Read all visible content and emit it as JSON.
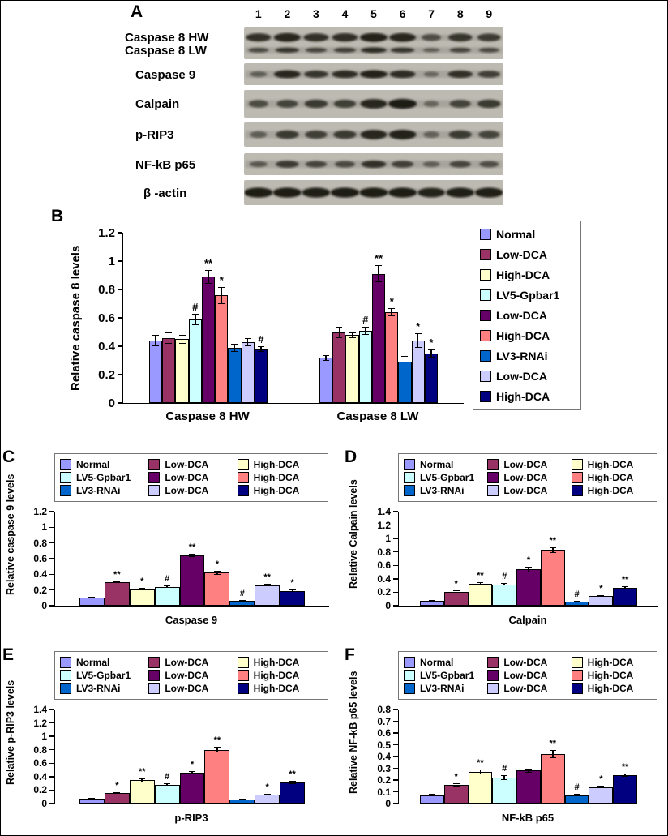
{
  "panels": {
    "A": {
      "label": "A",
      "lanes": [
        "1",
        "2",
        "3",
        "4",
        "5",
        "6",
        "7",
        "8",
        "9"
      ],
      "rows": [
        {
          "label": "Caspase 8 HW",
          "band_intensities": [
            0.75,
            0.85,
            0.75,
            0.78,
            0.9,
            0.85,
            0.45,
            0.7,
            0.65
          ]
        },
        {
          "label": "Caspase 8 LW",
          "band_intensities": [
            0.5,
            0.7,
            0.55,
            0.6,
            0.8,
            0.7,
            0.3,
            0.55,
            0.5
          ]
        },
        {
          "label": "Caspase 9",
          "band_intensities": [
            0.3,
            0.85,
            0.7,
            0.8,
            0.9,
            0.8,
            0.2,
            0.75,
            0.6
          ]
        },
        {
          "label": "Calpain",
          "band_intensities": [
            0.45,
            0.55,
            0.65,
            0.6,
            0.85,
            0.95,
            0.2,
            0.55,
            0.65
          ]
        },
        {
          "label": "p-RIP3",
          "band_intensities": [
            0.3,
            0.65,
            0.6,
            0.65,
            0.85,
            0.9,
            0.25,
            0.65,
            0.55
          ]
        },
        {
          "label": "NF-kB p65",
          "band_intensities": [
            0.35,
            0.65,
            0.55,
            0.5,
            0.75,
            0.6,
            0.3,
            0.55,
            0.45
          ]
        },
        {
          "label": "β -actin",
          "band_intensities": [
            0.95,
            0.95,
            0.92,
            0.95,
            0.95,
            0.95,
            0.88,
            0.92,
            0.92
          ]
        }
      ]
    },
    "B": {
      "label": "B"
    },
    "C": {
      "label": "C"
    },
    "D": {
      "label": "D"
    },
    "E": {
      "label": "E"
    },
    "F": {
      "label": "F"
    }
  },
  "chart_data": [
    {
      "panel": "B",
      "type": "bar",
      "ylabel": "Relative caspase 8 levels",
      "categories": [
        "Caspase 8 HW",
        "Caspase 8 LW"
      ],
      "ylim": [
        0,
        1.2
      ],
      "ytick_step": 0.2,
      "legend_position": "right",
      "grid": false,
      "series": [
        {
          "name": "Normal",
          "color": "#9999FF",
          "values": [
            0.44,
            0.32
          ],
          "errors": [
            0.04,
            0.02
          ],
          "annotations": [
            "",
            ""
          ]
        },
        {
          "name": "Low-DCA",
          "color": "#993366",
          "values": [
            0.46,
            0.5
          ],
          "errors": [
            0.04,
            0.04
          ],
          "annotations": [
            "",
            ""
          ]
        },
        {
          "name": "High-DCA",
          "color": "#FFFFCC",
          "values": [
            0.45,
            0.48
          ],
          "errors": [
            0.03,
            0.02
          ],
          "annotations": [
            "",
            ""
          ]
        },
        {
          "name": "LV5-Gpbar1",
          "color": "#CCFFFF",
          "values": [
            0.59,
            0.51
          ],
          "errors": [
            0.04,
            0.03
          ],
          "annotations": [
            "#",
            "#"
          ]
        },
        {
          "name": "Low-DCA",
          "color": "#660066",
          "values": [
            0.89,
            0.91
          ],
          "errors": [
            0.05,
            0.06
          ],
          "annotations": [
            "**",
            "**"
          ]
        },
        {
          "name": "High-DCA",
          "color": "#FF8080",
          "values": [
            0.76,
            0.64
          ],
          "errors": [
            0.06,
            0.03
          ],
          "annotations": [
            "*",
            "*"
          ]
        },
        {
          "name": "LV3-RNAi",
          "color": "#0066CC",
          "values": [
            0.39,
            0.29
          ],
          "errors": [
            0.03,
            0.04
          ],
          "annotations": [
            "",
            ""
          ]
        },
        {
          "name": "Low-DCA",
          "color": "#CCCCFF",
          "values": [
            0.43,
            0.44
          ],
          "errors": [
            0.03,
            0.05
          ],
          "annotations": [
            "",
            "*"
          ]
        },
        {
          "name": "High-DCA",
          "color": "#000080",
          "values": [
            0.38,
            0.35
          ],
          "errors": [
            0.02,
            0.03
          ],
          "annotations": [
            "#",
            "*"
          ]
        }
      ]
    },
    {
      "panel": "C",
      "type": "bar",
      "ylabel": "Relative caspase 9 levels",
      "categories": [
        "Caspase 9"
      ],
      "ylim": [
        0,
        1.2
      ],
      "ytick_step": 0.2,
      "legend_position": "top",
      "grid": false,
      "series": [
        {
          "name": "Normal",
          "color": "#9999FF",
          "values": [
            0.1
          ],
          "errors": [
            0.01
          ],
          "annotations": [
            ""
          ]
        },
        {
          "name": "Low-DCA",
          "color": "#993366",
          "values": [
            0.3
          ],
          "errors": [
            0.015
          ],
          "annotations": [
            "**"
          ]
        },
        {
          "name": "High-DCA",
          "color": "#FFFFCC",
          "values": [
            0.21
          ],
          "errors": [
            0.015
          ],
          "annotations": [
            "*"
          ]
        },
        {
          "name": "LV5-Gpbar1",
          "color": "#CCFFFF",
          "values": [
            0.24
          ],
          "errors": [
            0.015
          ],
          "annotations": [
            "#"
          ]
        },
        {
          "name": "Low-DCA",
          "color": "#660066",
          "values": [
            0.64
          ],
          "errors": [
            0.02
          ],
          "annotations": [
            "**"
          ]
        },
        {
          "name": "High-DCA",
          "color": "#FF8080",
          "values": [
            0.42
          ],
          "errors": [
            0.025
          ],
          "annotations": [
            "*"
          ]
        },
        {
          "name": "LV3-RNAi",
          "color": "#0066CC",
          "values": [
            0.06
          ],
          "errors": [
            0.008
          ],
          "annotations": [
            "#"
          ]
        },
        {
          "name": "Low-DCA",
          "color": "#CCCCFF",
          "values": [
            0.26
          ],
          "errors": [
            0.015
          ],
          "annotations": [
            "**"
          ]
        },
        {
          "name": "High-DCA",
          "color": "#000080",
          "values": [
            0.19
          ],
          "errors": [
            0.012
          ],
          "annotations": [
            "*"
          ]
        }
      ]
    },
    {
      "panel": "D",
      "type": "bar",
      "ylabel": "Relative Calpain levels",
      "categories": [
        "Calpain"
      ],
      "ylim": [
        0,
        1.4
      ],
      "ytick_step": 0.2,
      "legend_position": "top",
      "grid": false,
      "series": [
        {
          "name": "Normal",
          "color": "#9999FF",
          "values": [
            0.07
          ],
          "errors": [
            0.01
          ],
          "annotations": [
            ""
          ]
        },
        {
          "name": "Low-DCA",
          "color": "#993366",
          "values": [
            0.21
          ],
          "errors": [
            0.02
          ],
          "annotations": [
            "*"
          ]
        },
        {
          "name": "High-DCA",
          "color": "#FFFFCC",
          "values": [
            0.33
          ],
          "errors": [
            0.02
          ],
          "annotations": [
            "**"
          ]
        },
        {
          "name": "LV5-Gpbar1",
          "color": "#CCFFFF",
          "values": [
            0.32
          ],
          "errors": [
            0.02
          ],
          "annotations": [
            "#"
          ]
        },
        {
          "name": "Low-DCA",
          "color": "#660066",
          "values": [
            0.54
          ],
          "errors": [
            0.04
          ],
          "annotations": [
            "*"
          ]
        },
        {
          "name": "High-DCA",
          "color": "#FF8080",
          "values": [
            0.83
          ],
          "errors": [
            0.04
          ],
          "annotations": [
            "**"
          ]
        },
        {
          "name": "LV3-RNAi",
          "color": "#0066CC",
          "values": [
            0.06
          ],
          "errors": [
            0.008
          ],
          "annotations": [
            "#"
          ]
        },
        {
          "name": "Low-DCA",
          "color": "#CCCCFF",
          "values": [
            0.14
          ],
          "errors": [
            0.012
          ],
          "annotations": [
            "*"
          ]
        },
        {
          "name": "High-DCA",
          "color": "#000080",
          "values": [
            0.27
          ],
          "errors": [
            0.015
          ],
          "annotations": [
            "**"
          ]
        }
      ]
    },
    {
      "panel": "E",
      "type": "bar",
      "ylabel": "Relative p-RIP3 levels",
      "categories": [
        "p-RIP3"
      ],
      "ylim": [
        0,
        1.4
      ],
      "ytick_step": 0.2,
      "legend_position": "top",
      "grid": false,
      "series": [
        {
          "name": "Normal",
          "color": "#9999FF",
          "values": [
            0.07
          ],
          "errors": [
            0.01
          ],
          "annotations": [
            ""
          ]
        },
        {
          "name": "Low-DCA",
          "color": "#993366",
          "values": [
            0.16
          ],
          "errors": [
            0.015
          ],
          "annotations": [
            "*"
          ]
        },
        {
          "name": "High-DCA",
          "color": "#FFFFCC",
          "values": [
            0.35
          ],
          "errors": [
            0.03
          ],
          "annotations": [
            "**"
          ]
        },
        {
          "name": "LV5-Gpbar1",
          "color": "#CCFFFF",
          "values": [
            0.28
          ],
          "errors": [
            0.02
          ],
          "annotations": [
            "#"
          ]
        },
        {
          "name": "Low-DCA",
          "color": "#660066",
          "values": [
            0.46
          ],
          "errors": [
            0.025
          ],
          "annotations": [
            "*"
          ]
        },
        {
          "name": "High-DCA",
          "color": "#FF8080",
          "values": [
            0.8
          ],
          "errors": [
            0.04
          ],
          "annotations": [
            "**"
          ]
        },
        {
          "name": "LV3-RNAi",
          "color": "#0066CC",
          "values": [
            0.06
          ],
          "errors": [
            0.008
          ],
          "annotations": [
            ""
          ]
        },
        {
          "name": "Low-DCA",
          "color": "#CCCCFF",
          "values": [
            0.13
          ],
          "errors": [
            0.012
          ],
          "annotations": [
            "*"
          ]
        },
        {
          "name": "High-DCA",
          "color": "#000080",
          "values": [
            0.31
          ],
          "errors": [
            0.025
          ],
          "annotations": [
            "**"
          ]
        }
      ]
    },
    {
      "panel": "F",
      "type": "bar",
      "ylabel": "Relative NF-kB p65 levels",
      "categories": [
        "NF-kB p65"
      ],
      "ylim": [
        0,
        0.8
      ],
      "ytick_step": 0.1,
      "legend_position": "top",
      "grid": false,
      "series": [
        {
          "name": "Normal",
          "color": "#9999FF",
          "values": [
            0.07
          ],
          "errors": [
            0.01
          ],
          "annotations": [
            ""
          ]
        },
        {
          "name": "Low-DCA",
          "color": "#993366",
          "values": [
            0.16
          ],
          "errors": [
            0.015
          ],
          "annotations": [
            "*"
          ]
        },
        {
          "name": "High-DCA",
          "color": "#FFFFCC",
          "values": [
            0.27
          ],
          "errors": [
            0.02
          ],
          "annotations": [
            "**"
          ]
        },
        {
          "name": "LV5-Gpbar1",
          "color": "#CCFFFF",
          "values": [
            0.22
          ],
          "errors": [
            0.02
          ],
          "annotations": [
            "#"
          ]
        },
        {
          "name": "Low-DCA",
          "color": "#660066",
          "values": [
            0.28
          ],
          "errors": [
            0.02
          ],
          "annotations": [
            ""
          ]
        },
        {
          "name": "High-DCA",
          "color": "#FF8080",
          "values": [
            0.42
          ],
          "errors": [
            0.035
          ],
          "annotations": [
            "**"
          ]
        },
        {
          "name": "LV3-RNAi",
          "color": "#0066CC",
          "values": [
            0.07
          ],
          "errors": [
            0.01
          ],
          "annotations": [
            "#"
          ]
        },
        {
          "name": "Low-DCA",
          "color": "#CCCCFF",
          "values": [
            0.14
          ],
          "errors": [
            0.012
          ],
          "annotations": [
            "*"
          ]
        },
        {
          "name": "High-DCA",
          "color": "#000080",
          "values": [
            0.24
          ],
          "errors": [
            0.015
          ],
          "annotations": [
            "**"
          ]
        }
      ]
    }
  ]
}
